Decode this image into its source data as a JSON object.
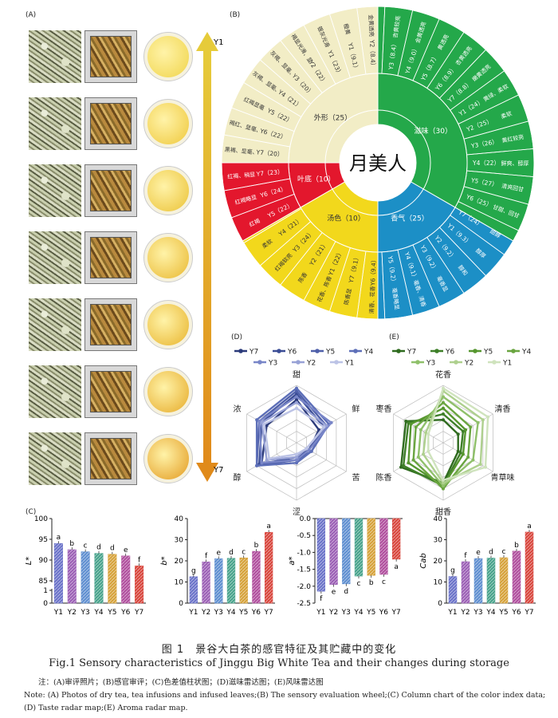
{
  "panels": {
    "a": "(A)",
    "b": "(B)",
    "c": "(C)",
    "d": "(D)",
    "e": "(E)"
  },
  "panel_a": {
    "arrow_top": "Y1",
    "arrow_bottom": "Y7",
    "infusion_colors": [
      "#f0d44a",
      "#efc83c",
      "#ebc236",
      "#e9b830",
      "#e8b42c",
      "#e6aa28",
      "#e39a1f"
    ]
  },
  "wheel": {
    "center": "月美人",
    "segments": [
      {
        "name": "外形（25）",
        "color": "#f2edc6"
      },
      {
        "name": "滋味（30）",
        "color": "#24a84a"
      },
      {
        "name": "香气（25）",
        "color": "#1c8fc6"
      },
      {
        "name": "汤色（10）",
        "color": "#f2d81c"
      },
      {
        "name": "叶底（10）",
        "color": "#e3172d"
      }
    ],
    "inner_labels": [
      "Y7（20）",
      "Y6（22）",
      "Y5（22）",
      "Y4（21）",
      "Y3（20）",
      "Y2（22）",
      "Y1（23）",
      "Y1（9.1）",
      "Y2（8.4）",
      "Y3（8.4）",
      "Y4（9.0）",
      "Y5（8.7）",
      "Y6（8.9）",
      "Y7（8.8）",
      "Y1（24）",
      "Y2（25）",
      "Y3（26）",
      "Y4（22）",
      "Y5（27）",
      "Y6（25）",
      "Y7（24）",
      "Y1（9.3）",
      "Y2（9.2）",
      "Y3（9.2）",
      "Y4（9.1）",
      "Y5（9.2）",
      "Y6（9.4）",
      "Y7（9.1）",
      "Y1（22）",
      "Y2（21）",
      "Y3（24）",
      "Y4（21）",
      "Y5（22）",
      "Y6（24）",
      "Y7（23）"
    ],
    "outer_labels": [
      "黑褐、显毫、较匀",
      "褐红、显毫、匀齐",
      "红褐显毫",
      "灰褐、显毫、匀齐",
      "灰褐、显毫、较匀",
      "褐显光滑、显毫、匀齐",
      "银灰光滑",
      "橙黄",
      "金黄透亮",
      "杏黄较亮",
      "金黄透亮",
      "黄透亮",
      "杏黄透亮",
      "嫩黄透亮",
      "黄绿、柔软",
      "柔软",
      "黄红较亮",
      "鲜爽、醇厚",
      "清爽回甘",
      "甘甜、回甘",
      "甜醇",
      "醇厚",
      "醇和",
      "毫香显",
      "毫香、清香",
      "毫香略显",
      "清香、花香",
      "陈香显",
      "花香、陈香",
      "陈香",
      "红褐软亮",
      "柔软",
      "红褐",
      "红褐略显",
      "红褐、稍显"
    ]
  },
  "radar_d": {
    "legend": [
      "Y7",
      "Y6",
      "Y5",
      "Y4",
      "Y3",
      "Y2",
      "Y1"
    ],
    "colors": [
      "#2b3a7a",
      "#3a4c95",
      "#4f60aa",
      "#5d6fb8",
      "#7986c8",
      "#98a2d6",
      "#bcc3e6"
    ],
    "axes": [
      "甜",
      "鲜",
      "苦",
      "涩",
      "醇",
      "浓"
    ],
    "series": [
      [
        0.75,
        0.45,
        0.25,
        0.3,
        0.7,
        0.6
      ],
      [
        0.85,
        0.55,
        0.25,
        0.25,
        0.75,
        0.7
      ],
      [
        0.9,
        0.6,
        0.3,
        0.3,
        0.8,
        0.75
      ],
      [
        0.95,
        0.65,
        0.3,
        0.35,
        0.8,
        0.8
      ],
      [
        0.8,
        0.7,
        0.25,
        0.3,
        0.7,
        0.75
      ],
      [
        0.7,
        0.6,
        0.2,
        0.25,
        0.6,
        0.7
      ],
      [
        0.6,
        0.55,
        0.2,
        0.2,
        0.55,
        0.65
      ]
    ]
  },
  "radar_e": {
    "legend": [
      "Y7",
      "Y6",
      "Y5",
      "Y4",
      "Y3",
      "Y2",
      "Y1"
    ],
    "colors": [
      "#2f6b1f",
      "#3e7f28",
      "#56962f",
      "#6aa540",
      "#8fc06a",
      "#aed08e",
      "#cfe3bd"
    ],
    "axes": [
      "花香",
      "清香",
      "青草味",
      "甜香",
      "陈香",
      "枣香"
    ],
    "series": [
      [
        0.4,
        0.3,
        0.3,
        0.7,
        0.85,
        0.75
      ],
      [
        0.5,
        0.4,
        0.35,
        0.75,
        0.8,
        0.7
      ],
      [
        0.6,
        0.45,
        0.4,
        0.75,
        0.7,
        0.65
      ],
      [
        0.7,
        0.55,
        0.5,
        0.8,
        0.6,
        0.55
      ],
      [
        0.8,
        0.7,
        0.6,
        0.75,
        0.5,
        0.45
      ],
      [
        0.9,
        0.8,
        0.75,
        0.7,
        0.4,
        0.35
      ],
      [
        0.95,
        0.9,
        0.85,
        0.65,
        0.3,
        0.3
      ]
    ]
  },
  "bar_charts": [
    {
      "ylabel": "L*",
      "ylim": [
        85,
        100
      ],
      "break_low": [
        0,
        1
      ],
      "ticks": [
        "100",
        "95",
        "90",
        "85",
        "1",
        "0"
      ],
      "categories": [
        "Y1",
        "Y2",
        "Y3",
        "Y4",
        "Y5",
        "Y6",
        "Y7"
      ],
      "values": [
        94.0,
        92.5,
        92.0,
        91.6,
        91.4,
        91.0,
        88.6
      ],
      "letters": [
        "a",
        "b",
        "c",
        "d",
        "d",
        "e",
        "f"
      ]
    },
    {
      "ylabel": "b*",
      "ylim": [
        0,
        40
      ],
      "ticks": [
        "40",
        "30",
        "20",
        "10",
        "0"
      ],
      "categories": [
        "Y1",
        "Y2",
        "Y3",
        "Y4",
        "Y5",
        "Y6",
        "Y7"
      ],
      "values": [
        12.5,
        19.5,
        21.0,
        21.2,
        21.4,
        24.5,
        33.5
      ],
      "letters": [
        "g",
        "f",
        "e",
        "d",
        "c",
        "b",
        "a"
      ]
    },
    {
      "ylabel": "a*",
      "ylim": [
        -2.5,
        0
      ],
      "ticks": [
        "0.0",
        "-0.5",
        "-1.0",
        "-1.5",
        "-2.0",
        "-2.5"
      ],
      "categories": [
        "Y1",
        "Y2",
        "Y3",
        "Y4",
        "Y5",
        "Y6",
        "Y7"
      ],
      "values": [
        -2.15,
        -1.95,
        -1.93,
        -1.7,
        -1.68,
        -1.65,
        -1.2
      ],
      "letters": [
        "f",
        "e",
        "d",
        "c",
        "b",
        "c",
        "a"
      ]
    },
    {
      "ylabel": "Cab",
      "ylim": [
        0,
        40
      ],
      "ticks": [
        "40",
        "30",
        "20",
        "10",
        "0"
      ],
      "categories": [
        "Y1",
        "Y2",
        "Y3",
        "Y4",
        "Y5",
        "Y6",
        "Y7"
      ],
      "values": [
        12.6,
        19.6,
        21.1,
        21.3,
        21.5,
        24.6,
        33.6
      ],
      "letters": [
        "g",
        "f",
        "e",
        "d",
        "c",
        "b",
        "a"
      ]
    }
  ],
  "bar_colors": [
    "#6b73c9",
    "#9b5fb5",
    "#5f8fd0",
    "#48a38c",
    "#d6a23a",
    "#b04e9d",
    "#d8453c"
  ],
  "caption_cn": "图 1　景谷大白茶的感官特征及其贮藏中的变化",
  "caption_en": "Fig.1 Sensory characteristics of Jinggu Big White Tea and their changes during storage",
  "note_cn": "注：(A)审评照片；(B)感官审评；(C)色差值柱状图；(D)滋味雷达图；(E)风味雷达图",
  "note_en": "Note:  (A) Photos of dry tea, tea infusions and infused leaves;(B) The sensory evaluation wheel;(C) Column chart of the color index data;",
  "note_en2": "(D) Taste radar map;(E) Aroma radar map."
}
